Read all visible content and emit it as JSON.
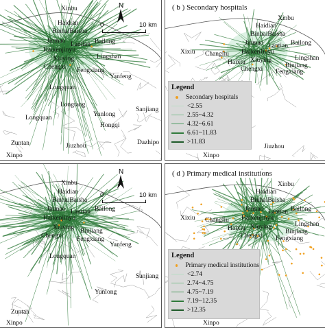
{
  "colors": {
    "line": "#2f7a3a",
    "halo": "#d8f0e0",
    "dot": "#f0a020",
    "legend_bg": "#d9d9d9",
    "boundary": "#9a9a9a"
  },
  "panels": {
    "a": {
      "title": "",
      "north": "N",
      "scale": {
        "start": "0",
        "end": "10 km"
      },
      "places": [
        "Xinbu",
        "Haidian",
        "BinhaiBaisha",
        "Jinmao",
        "Lantian",
        "Bailong",
        "Haikenjinyu",
        "Xiuying",
        "Lingshan",
        "Chengxi",
        "Fengxiang",
        "Yanfeng",
        "Longquan",
        "Longtang",
        "Yunlong",
        "Sanjiang",
        "Longquan",
        "Hongqi",
        "Zuntan",
        "Dazhipo",
        "Jiuzhou",
        "Xinpo"
      ]
    },
    "b": {
      "title": "( b ) Secondary hospitals",
      "places": [
        "Xinbu",
        "Haidian",
        "BinhaiBaisha",
        "Jinmao",
        "Lantian",
        "Bailong",
        "Xixiu",
        "Changliu",
        "HaikenJinyu",
        "Xiuying",
        "Lingshan",
        "Binjiang",
        "Haixiu",
        "Chengxi",
        "Fengxiang",
        "Jiuzhou",
        "Xinpo"
      ],
      "legend": {
        "title": "Legend",
        "point": "Secondary hospitals",
        "classes": [
          "<2.55",
          "2.55~4.32",
          "4.32~6.61",
          "6.61~11.83",
          ">11.83"
        ]
      }
    },
    "c": {
      "title": "",
      "north": "N",
      "scale": {
        "start": "0",
        "end": "10 km"
      },
      "places": [
        "Xinbu",
        "Haidian",
        "BinhaiBaisha",
        "Jinmao",
        "Lantian",
        "Bailong",
        "Haikenjinyu",
        "Xiuying",
        "Chengxi",
        "Binjiang",
        "Fengxiang",
        "Yanfeng",
        "Longquan",
        "Yunlong",
        "Sanjiang",
        "Zuntan",
        "Xinpo"
      ]
    },
    "d": {
      "title": "( d ) Primary medical institutions",
      "places": [
        "Xinbu",
        "Haidian",
        "BinhaiBaisha",
        "Jinmao",
        "Lantian",
        "Bailong",
        "Xixiu",
        "Changliu",
        "Haikenjinyu",
        "Xiuying",
        "Lingshan",
        "Binjiang",
        "Haixiu",
        "Chengxi",
        "Fengxiang",
        "Xinpo"
      ],
      "legend": {
        "title": "Legend",
        "point": "Primary medical institutions",
        "classes": [
          "<2.74",
          "2.74~4.75",
          "4.75~7.19",
          "7.19~12.35",
          ">12.35"
        ]
      }
    }
  }
}
